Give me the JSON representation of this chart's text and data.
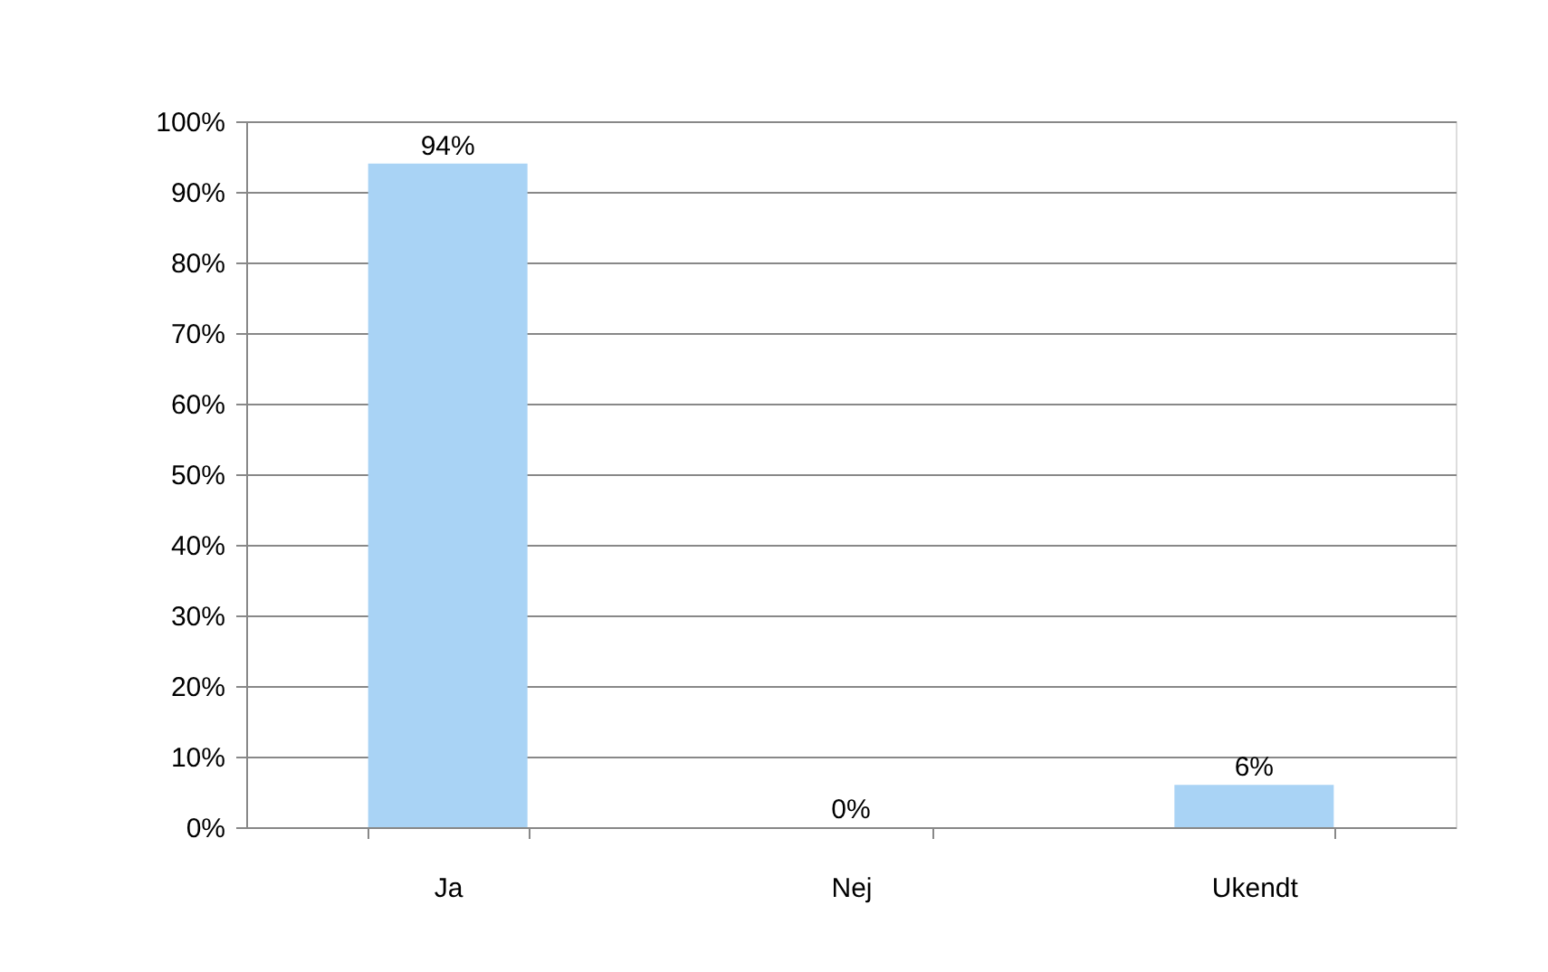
{
  "chart_data": {
    "type": "bar",
    "categories": [
      "Ja",
      "Nej",
      "Ukendt"
    ],
    "values": [
      94,
      0,
      6
    ],
    "color": "#a9d3f5",
    "value_labels": [
      "94%",
      "0%",
      "6%"
    ],
    "ylim": [
      0,
      100
    ],
    "yticks": [
      {
        "value": 0,
        "label": "0%"
      },
      {
        "value": 10,
        "label": "10%"
      },
      {
        "value": 20,
        "label": "20%"
      },
      {
        "value": 30,
        "label": "30%"
      },
      {
        "value": 40,
        "label": "40%"
      },
      {
        "value": 50,
        "label": "50%"
      },
      {
        "value": 60,
        "label": "60%"
      },
      {
        "value": 70,
        "label": "70%"
      },
      {
        "value": 80,
        "label": "80%"
      },
      {
        "value": 90,
        "label": "90%"
      },
      {
        "value": 100,
        "label": "100%"
      }
    ],
    "grid": "y"
  }
}
